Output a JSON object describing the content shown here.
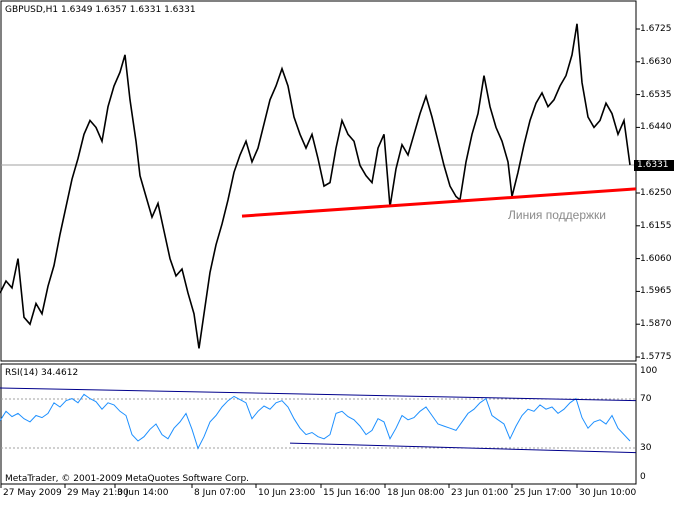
{
  "chart": {
    "header": "GBPUSD,H1  1.6349 1.6357 1.6331 1.6331",
    "current_price": "1.6331",
    "price_ticks": [
      "1.6725",
      "1.6630",
      "1.6535",
      "1.6440",
      "1.6250",
      "1.6155",
      "1.6060",
      "1.5965",
      "1.5870",
      "1.5775"
    ],
    "support_label": "Линия поддержки",
    "support_line_color": "#ff0000",
    "trend_line_color": "#00008b"
  },
  "indicator": {
    "header": "RSI(14) 34.4612",
    "levels": [
      "100",
      "70",
      "30",
      "0"
    ],
    "line_color": "#1e90ff"
  },
  "footer": {
    "copyright": "MetaTrader, © 2001-2009 MetaQuotes Software Corp."
  },
  "time_axis": [
    "27 May 2009",
    "29 May 21:00",
    "3 Jun 14:00",
    "8 Jun 07:00",
    "10 Jun 23:00",
    "15 Jun 16:00",
    "18 Jun 08:00",
    "23 Jun 01:00",
    "25 Jun 17:00",
    "30 Jun 10:00"
  ],
  "chart_data": {
    "type": "line",
    "title": "GBPUSD,H1",
    "price_range": [
      1.5775,
      1.6725
    ],
    "price_series": [
      [
        0,
        1.596
      ],
      [
        6,
        1.5995
      ],
      [
        12,
        1.5975
      ],
      [
        18,
        1.606
      ],
      [
        24,
        1.589
      ],
      [
        30,
        1.587
      ],
      [
        36,
        1.593
      ],
      [
        42,
        1.59
      ],
      [
        48,
        1.598
      ],
      [
        54,
        1.604
      ],
      [
        60,
        1.613
      ],
      [
        66,
        1.621
      ],
      [
        72,
        1.629
      ],
      [
        78,
        1.635
      ],
      [
        84,
        1.642
      ],
      [
        90,
        1.646
      ],
      [
        96,
        1.644
      ],
      [
        102,
        1.64
      ],
      [
        108,
        1.65
      ],
      [
        114,
        1.656
      ],
      [
        120,
        1.66
      ],
      [
        125,
        1.665
      ],
      [
        130,
        1.652
      ],
      [
        136,
        1.64
      ],
      [
        140,
        1.63
      ],
      [
        146,
        1.624
      ],
      [
        152,
        1.618
      ],
      [
        158,
        1.622
      ],
      [
        164,
        1.614
      ],
      [
        170,
        1.606
      ],
      [
        176,
        1.601
      ],
      [
        182,
        1.603
      ],
      [
        188,
        1.596
      ],
      [
        194,
        1.59
      ],
      [
        199,
        1.58
      ],
      [
        204,
        1.59
      ],
      [
        210,
        1.602
      ],
      [
        216,
        1.61
      ],
      [
        222,
        1.616
      ],
      [
        228,
        1.623
      ],
      [
        234,
        1.631
      ],
      [
        240,
        1.636
      ],
      [
        246,
        1.64
      ],
      [
        252,
        1.634
      ],
      [
        258,
        1.638
      ],
      [
        264,
        1.645
      ],
      [
        270,
        1.652
      ],
      [
        276,
        1.656
      ],
      [
        282,
        1.661
      ],
      [
        288,
        1.656
      ],
      [
        294,
        1.647
      ],
      [
        300,
        1.642
      ],
      [
        306,
        1.638
      ],
      [
        312,
        1.642
      ],
      [
        318,
        1.635
      ],
      [
        324,
        1.627
      ],
      [
        330,
        1.628
      ],
      [
        336,
        1.638
      ],
      [
        342,
        1.646
      ],
      [
        348,
        1.642
      ],
      [
        354,
        1.64
      ],
      [
        360,
        1.633
      ],
      [
        366,
        1.63
      ],
      [
        372,
        1.628
      ],
      [
        378,
        1.638
      ],
      [
        384,
        1.642
      ],
      [
        390,
        1.621
      ],
      [
        396,
        1.632
      ],
      [
        402,
        1.639
      ],
      [
        408,
        1.636
      ],
      [
        414,
        1.642
      ],
      [
        420,
        1.648
      ],
      [
        426,
        1.653
      ],
      [
        432,
        1.647
      ],
      [
        438,
        1.64
      ],
      [
        444,
        1.633
      ],
      [
        450,
        1.627
      ],
      [
        456,
        1.624
      ],
      [
        460,
        1.623
      ],
      [
        466,
        1.634
      ],
      [
        472,
        1.642
      ],
      [
        478,
        1.648
      ],
      [
        484,
        1.659
      ],
      [
        490,
        1.65
      ],
      [
        496,
        1.644
      ],
      [
        502,
        1.64
      ],
      [
        508,
        1.634
      ],
      [
        512,
        1.624
      ],
      [
        518,
        1.631
      ],
      [
        524,
        1.639
      ],
      [
        530,
        1.646
      ],
      [
        536,
        1.651
      ],
      [
        542,
        1.654
      ],
      [
        548,
        1.65
      ],
      [
        554,
        1.652
      ],
      [
        560,
        1.656
      ],
      [
        566,
        1.659
      ],
      [
        572,
        1.665
      ],
      [
        577,
        1.674
      ],
      [
        582,
        1.657
      ],
      [
        588,
        1.647
      ],
      [
        594,
        1.644
      ],
      [
        600,
        1.646
      ],
      [
        606,
        1.651
      ],
      [
        612,
        1.648
      ],
      [
        618,
        1.642
      ],
      [
        624,
        1.646
      ],
      [
        630,
        1.6331
      ]
    ],
    "rsi_range": [
      0,
      100
    ],
    "rsi_series": [
      [
        0,
        53
      ],
      [
        6,
        62
      ],
      [
        12,
        57
      ],
      [
        18,
        60
      ],
      [
        24,
        55
      ],
      [
        30,
        52
      ],
      [
        36,
        58
      ],
      [
        42,
        56
      ],
      [
        48,
        60
      ],
      [
        54,
        70
      ],
      [
        60,
        66
      ],
      [
        66,
        72
      ],
      [
        72,
        74
      ],
      [
        78,
        70
      ],
      [
        84,
        78
      ],
      [
        90,
        74
      ],
      [
        96,
        71
      ],
      [
        102,
        64
      ],
      [
        108,
        70
      ],
      [
        114,
        68
      ],
      [
        120,
        62
      ],
      [
        126,
        58
      ],
      [
        132,
        40
      ],
      [
        138,
        34
      ],
      [
        144,
        38
      ],
      [
        150,
        45
      ],
      [
        156,
        50
      ],
      [
        162,
        40
      ],
      [
        168,
        36
      ],
      [
        174,
        46
      ],
      [
        180,
        52
      ],
      [
        186,
        60
      ],
      [
        192,
        45
      ],
      [
        198,
        27
      ],
      [
        204,
        38
      ],
      [
        210,
        52
      ],
      [
        216,
        58
      ],
      [
        222,
        66
      ],
      [
        228,
        72
      ],
      [
        234,
        76
      ],
      [
        240,
        73
      ],
      [
        246,
        70
      ],
      [
        252,
        55
      ],
      [
        258,
        62
      ],
      [
        264,
        67
      ],
      [
        270,
        64
      ],
      [
        276,
        70
      ],
      [
        282,
        72
      ],
      [
        288,
        66
      ],
      [
        294,
        55
      ],
      [
        300,
        46
      ],
      [
        306,
        40
      ],
      [
        312,
        42
      ],
      [
        318,
        38
      ],
      [
        324,
        36
      ],
      [
        330,
        40
      ],
      [
        336,
        60
      ],
      [
        342,
        62
      ],
      [
        348,
        57
      ],
      [
        354,
        54
      ],
      [
        360,
        48
      ],
      [
        366,
        40
      ],
      [
        372,
        44
      ],
      [
        378,
        55
      ],
      [
        384,
        52
      ],
      [
        390,
        36
      ],
      [
        396,
        46
      ],
      [
        402,
        58
      ],
      [
        408,
        54
      ],
      [
        414,
        56
      ],
      [
        420,
        62
      ],
      [
        426,
        66
      ],
      [
        432,
        58
      ],
      [
        438,
        50
      ],
      [
        444,
        48
      ],
      [
        450,
        46
      ],
      [
        456,
        44
      ],
      [
        462,
        52
      ],
      [
        468,
        60
      ],
      [
        474,
        64
      ],
      [
        480,
        70
      ],
      [
        486,
        74
      ],
      [
        492,
        58
      ],
      [
        498,
        54
      ],
      [
        504,
        50
      ],
      [
        510,
        36
      ],
      [
        516,
        48
      ],
      [
        522,
        58
      ],
      [
        528,
        64
      ],
      [
        534,
        62
      ],
      [
        540,
        68
      ],
      [
        546,
        64
      ],
      [
        552,
        66
      ],
      [
        558,
        60
      ],
      [
        564,
        64
      ],
      [
        570,
        70
      ],
      [
        576,
        74
      ],
      [
        582,
        56
      ],
      [
        588,
        46
      ],
      [
        594,
        52
      ],
      [
        600,
        54
      ],
      [
        606,
        50
      ],
      [
        612,
        58
      ],
      [
        618,
        46
      ],
      [
        624,
        40
      ],
      [
        630,
        34
      ]
    ],
    "support_line": {
      "from": [
        242,
        1.6183
      ],
      "to": [
        636,
        1.6262
      ]
    },
    "rsi_upper_trend": {
      "from": [
        0,
        84
      ],
      "to": [
        636,
        72
      ]
    },
    "rsi_lower_trend": {
      "from": [
        290,
        32
      ],
      "to": [
        636,
        23
      ]
    }
  }
}
